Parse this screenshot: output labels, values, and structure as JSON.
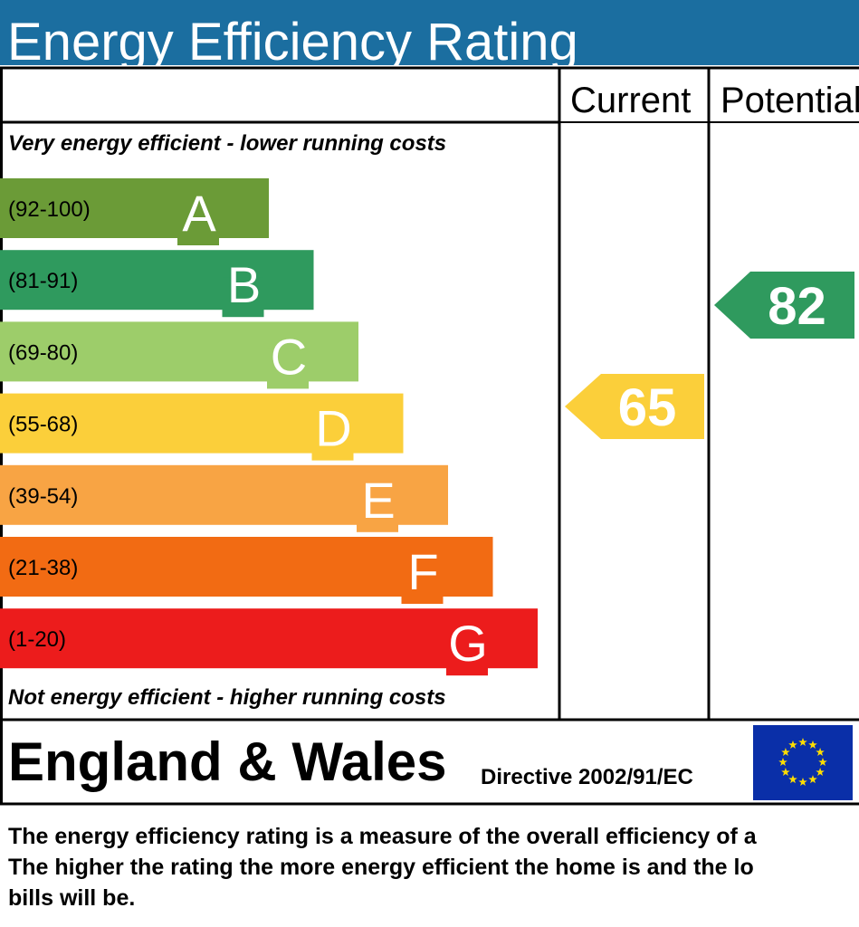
{
  "header": {
    "title": "Energy Efficiency Rating"
  },
  "columns": {
    "current": "Current",
    "potential": "Potential"
  },
  "top_note": "Very energy efficient - lower running costs",
  "bands": [
    {
      "range": "(92-100)",
      "letter": "A",
      "color": "#6b9b37"
    },
    {
      "range": "(81-91)",
      "letter": "B",
      "color": "#2f9a5e"
    },
    {
      "range": "(69-80)",
      "letter": "C",
      "color": "#9dcd6a"
    },
    {
      "range": "(55-68)",
      "letter": "D",
      "color": "#fbcf3a"
    },
    {
      "range": "(39-54)",
      "letter": "E",
      "color": "#f8a444"
    },
    {
      "range": "(21-38)",
      "letter": "F",
      "color": "#f26b13"
    },
    {
      "range": "(1-20)",
      "letter": "G",
      "color": "#ec1c1c"
    }
  ],
  "bottom_note": "Not energy efficient - higher running costs",
  "current": {
    "value": "65",
    "color": "#fbcf3a"
  },
  "potential": {
    "value": "82",
    "color": "#2f9a5e"
  },
  "footer": {
    "region": "England & Wales",
    "directive": "Directive 2002/91/EC"
  },
  "description": [
    "The energy efficiency rating is a measure of the overall efficiency of a",
    "The higher the rating the more energy efficient the home is and the lo",
    "bills will be."
  ]
}
